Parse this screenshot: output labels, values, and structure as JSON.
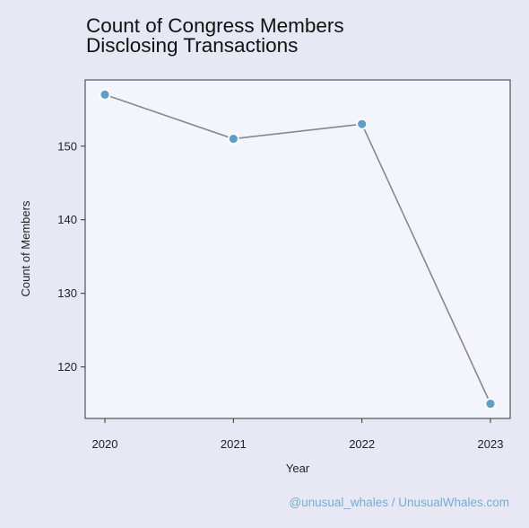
{
  "chart_data": {
    "type": "line",
    "title": "Count of Congress Members\nDisclosing Transactions",
    "xlabel": "Year",
    "ylabel": "Count of Members",
    "x": [
      "2020",
      "2021",
      "2022",
      "2023"
    ],
    "values": [
      157,
      151,
      153,
      115
    ],
    "y_ticks": [
      120,
      130,
      140,
      150
    ],
    "ylim": [
      113,
      159
    ],
    "grid": false,
    "colors": {
      "line": "#888888",
      "marker_fill": "#5f9ec9",
      "marker_edge": "#ffffff",
      "plot_bg": "#f4f4fc",
      "page_bg": "#e8e8f4"
    }
  },
  "credit": "@unusual_whales / UnusualWhales.com"
}
